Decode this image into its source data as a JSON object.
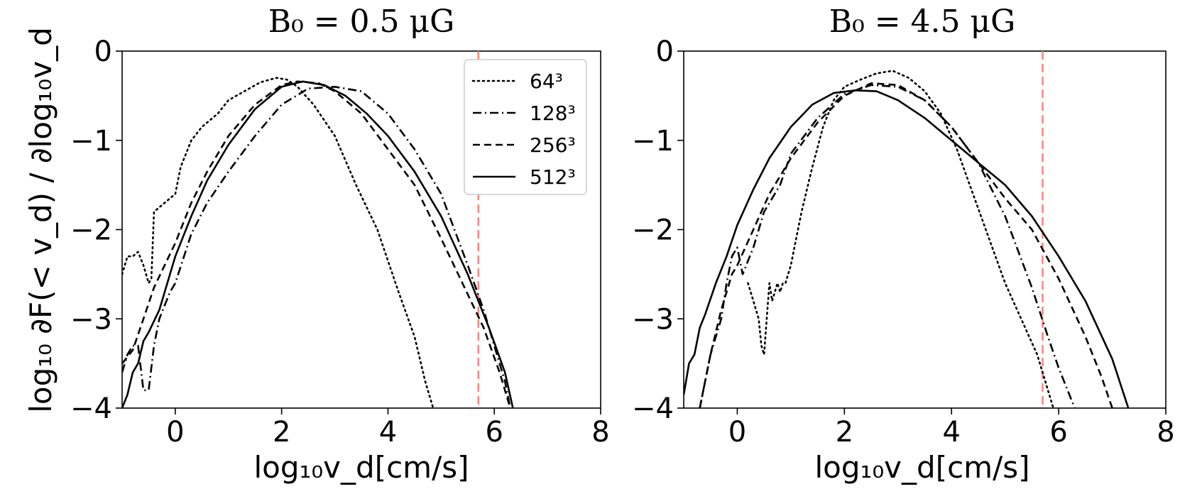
{
  "chart_data": [
    {
      "type": "line",
      "title": "B₀ = 0.5 μG",
      "xlabel": "log₁₀v_d[cm/s]",
      "ylabel": "log₁₀ ∂F(< v_d) / ∂log₁₀v_d",
      "xlim": [
        -1,
        8
      ],
      "ylim": [
        -4,
        0
      ],
      "xticks": [
        "0",
        "2",
        "4",
        "6",
        "8"
      ],
      "yticks": [
        "0",
        "−1",
        "−2",
        "−3",
        "−4"
      ],
      "vline": 5.7,
      "vline_color": "#ff7f7f",
      "legend": [
        "64³",
        "128³",
        "256³",
        "512³"
      ],
      "series": [
        {
          "name": "64³",
          "style": "dotted",
          "x": [
            -1,
            -0.9,
            -0.8,
            -0.7,
            -0.6,
            -0.5,
            -0.45,
            -0.4,
            -0.3,
            -0.2,
            -0.1,
            0,
            0.1,
            0.3,
            0.5,
            0.8,
            1.0,
            1.3,
            1.6,
            1.9,
            2.1,
            2.3,
            2.6,
            3.0,
            3.4,
            3.8,
            4.2,
            4.5,
            4.7,
            4.85,
            4.95
          ],
          "y": [
            -2.5,
            -2.3,
            -2.3,
            -2.25,
            -2.4,
            -2.6,
            -2.55,
            -1.8,
            -1.75,
            -1.7,
            -1.65,
            -1.6,
            -1.3,
            -1.0,
            -0.85,
            -0.7,
            -0.55,
            -0.45,
            -0.35,
            -0.3,
            -0.32,
            -0.4,
            -0.6,
            -0.95,
            -1.5,
            -2.0,
            -2.7,
            -3.2,
            -3.7,
            -4.0,
            -4.2
          ]
        },
        {
          "name": "128³",
          "style": "dashdot",
          "x": [
            -1,
            -0.9,
            -0.8,
            -0.7,
            -0.6,
            -0.5,
            -0.4,
            -0.3,
            -0.1,
            0,
            0.3,
            0.6,
            1.0,
            1.5,
            2.0,
            2.5,
            3.0,
            3.5,
            4.0,
            4.5,
            5.0,
            5.5,
            5.8,
            6.0,
            6.2,
            6.3
          ],
          "y": [
            -3.6,
            -3.4,
            -3.3,
            -3.3,
            -3.8,
            -3.8,
            -3.3,
            -3.0,
            -2.7,
            -2.6,
            -2.05,
            -1.7,
            -1.35,
            -0.95,
            -0.6,
            -0.42,
            -0.4,
            -0.45,
            -0.7,
            -1.1,
            -1.6,
            -2.4,
            -2.9,
            -3.3,
            -3.7,
            -4.0
          ]
        },
        {
          "name": "256³",
          "style": "dashed",
          "x": [
            -1,
            -0.8,
            -0.6,
            -0.4,
            -0.2,
            0,
            0.3,
            0.6,
            1.0,
            1.5,
            2.0,
            2.3,
            2.7,
            3.0,
            3.5,
            4.0,
            4.5,
            5.0,
            5.4,
            5.8,
            6.1,
            6.3
          ],
          "y": [
            -3.5,
            -3.35,
            -3.0,
            -2.65,
            -2.4,
            -2.15,
            -1.7,
            -1.35,
            -0.95,
            -0.6,
            -0.38,
            -0.34,
            -0.36,
            -0.45,
            -0.7,
            -1.1,
            -1.5,
            -2.1,
            -2.6,
            -3.1,
            -3.6,
            -4.0
          ]
        },
        {
          "name": "512³",
          "style": "solid",
          "x": [
            -1,
            -0.9,
            -0.8,
            -0.7,
            -0.6,
            -0.5,
            -0.3,
            0,
            0.3,
            0.6,
            1.0,
            1.5,
            2.0,
            2.4,
            2.8,
            3.2,
            3.6,
            4.0,
            4.5,
            5.0,
            5.5,
            5.9,
            6.2,
            6.35
          ],
          "y": [
            -4.0,
            -3.85,
            -3.6,
            -3.5,
            -3.25,
            -3.15,
            -2.9,
            -2.3,
            -1.85,
            -1.45,
            -1.05,
            -0.65,
            -0.4,
            -0.34,
            -0.38,
            -0.5,
            -0.7,
            -0.95,
            -1.35,
            -1.85,
            -2.5,
            -3.1,
            -3.6,
            -4.0
          ]
        }
      ]
    },
    {
      "type": "line",
      "title": "B₀ = 4.5 μG",
      "xlabel": "log₁₀v_d[cm/s]",
      "ylabel": "",
      "xlim": [
        -1,
        8
      ],
      "ylim": [
        -4,
        0
      ],
      "xticks": [
        "0",
        "2",
        "4",
        "6",
        "8"
      ],
      "yticks": [
        "0",
        "−1",
        "−2",
        "−3",
        "−4"
      ],
      "vline": 5.7,
      "vline_color": "#ff7f7f",
      "legend": [],
      "series": [
        {
          "name": "64³",
          "style": "dotted",
          "x": [
            0.2,
            0.3,
            0.4,
            0.45,
            0.5,
            0.55,
            0.6,
            0.65,
            0.7,
            0.75,
            0.8,
            0.85,
            0.9,
            1.0,
            1.1,
            1.2,
            1.4,
            1.6,
            1.8,
            2.0,
            2.3,
            2.6,
            2.9,
            3.2,
            3.5,
            3.8,
            4.1,
            4.4,
            4.7,
            5.0,
            5.3,
            5.6,
            5.8,
            5.9,
            5.95
          ],
          "y": [
            -2.6,
            -2.8,
            -3.0,
            -3.3,
            -3.4,
            -3.0,
            -2.6,
            -2.8,
            -2.7,
            -2.6,
            -2.7,
            -2.6,
            -2.6,
            -2.4,
            -2.1,
            -1.8,
            -1.3,
            -0.85,
            -0.55,
            -0.4,
            -0.32,
            -0.25,
            -0.22,
            -0.3,
            -0.45,
            -0.7,
            -1.1,
            -1.6,
            -2.1,
            -2.6,
            -3.0,
            -3.4,
            -3.8,
            -4.0,
            -4.2
          ]
        },
        {
          "name": "128³",
          "style": "dashdot",
          "x": [
            -0.7,
            -0.5,
            -0.3,
            -0.2,
            -0.1,
            0,
            0.1,
            0.3,
            0.5,
            0.8,
            1.0,
            1.5,
            2.0,
            2.5,
            3.0,
            3.5,
            4.0,
            4.5,
            5.0,
            5.5,
            5.8,
            6.0,
            6.2,
            6.3
          ],
          "y": [
            -4.0,
            -3.4,
            -3.0,
            -2.6,
            -2.3,
            -2.2,
            -2.5,
            -2.2,
            -1.8,
            -1.5,
            -1.15,
            -0.75,
            -0.48,
            -0.38,
            -0.4,
            -0.55,
            -0.85,
            -1.25,
            -1.85,
            -2.65,
            -3.2,
            -3.55,
            -3.85,
            -4.0
          ]
        },
        {
          "name": "256³",
          "style": "dashed",
          "x": [
            -0.7,
            -0.5,
            -0.3,
            -0.1,
            0,
            0.3,
            0.6,
            1.0,
            1.5,
            2.0,
            2.5,
            3.0,
            3.5,
            4.0,
            4.5,
            5.0,
            5.5,
            6.0,
            6.5,
            6.8,
            7.0
          ],
          "y": [
            -4.0,
            -3.4,
            -2.9,
            -2.5,
            -2.4,
            -2.0,
            -1.6,
            -1.2,
            -0.8,
            -0.5,
            -0.36,
            -0.38,
            -0.55,
            -0.85,
            -1.25,
            -1.65,
            -2.0,
            -2.55,
            -3.2,
            -3.65,
            -4.0
          ]
        },
        {
          "name": "512³",
          "style": "solid",
          "x": [
            -1,
            -0.9,
            -0.8,
            -0.7,
            -0.6,
            -0.4,
            -0.2,
            0,
            0.3,
            0.6,
            1.0,
            1.4,
            1.8,
            2.2,
            2.6,
            3.0,
            3.5,
            4.0,
            4.5,
            5.0,
            5.5,
            6.0,
            6.5,
            7.0,
            7.3
          ],
          "y": [
            -3.85,
            -3.5,
            -3.4,
            -3.1,
            -2.95,
            -2.6,
            -2.3,
            -1.95,
            -1.55,
            -1.2,
            -0.85,
            -0.6,
            -0.47,
            -0.44,
            -0.45,
            -0.55,
            -0.75,
            -1.0,
            -1.25,
            -1.5,
            -1.85,
            -2.3,
            -2.8,
            -3.45,
            -4.0
          ]
        }
      ]
    }
  ]
}
